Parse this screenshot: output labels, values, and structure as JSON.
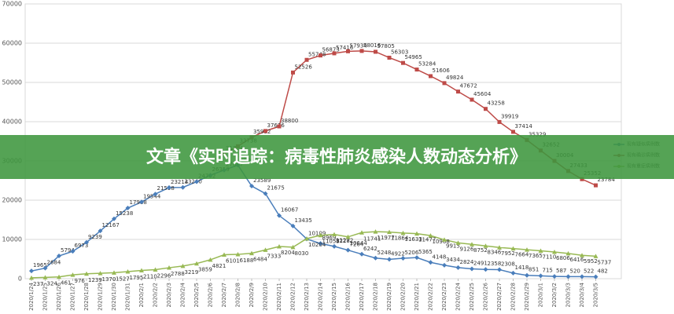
{
  "chart_data": {
    "type": "line",
    "title": "文章《实时追踪：病毒性肺炎感染人数动态分析》",
    "categories": [
      "2020/1/24",
      "2020/1/25",
      "2020/1/26",
      "2020/1/27",
      "2020/1/28",
      "2020/1/29",
      "2020/1/30",
      "2020/1/31",
      "2020/2/1",
      "2020/2/2",
      "2020/2/3",
      "2020/2/4",
      "2020/2/5",
      "2020/2/6",
      "2020/2/7",
      "2020/2/8",
      "2020/2/9",
      "2020/2/10",
      "2020/2/11",
      "2020/2/12",
      "2020/2/13",
      "2020/2/14",
      "2020/2/15",
      "2020/2/16",
      "2020/2/17",
      "2020/2/18",
      "2020/2/19",
      "2020/2/20",
      "2020/2/21",
      "2020/2/22",
      "2020/2/23",
      "2020/2/24",
      "2020/2/25",
      "2020/2/26",
      "2020/2/27",
      "2020/2/28",
      "2020/2/29",
      "2020/3/1",
      "2020/3/2",
      "2020/3/3",
      "2020/3/4",
      "2020/3/5"
    ],
    "series": [
      {
        "name": "现有疑似病例数",
        "color": "#4a7ebb",
        "values": [
          1965,
          2684,
          5794,
          6973,
          9239,
          12167,
          15238,
          17988,
          19544,
          21558,
          23214,
          23260,
          24702,
          26359,
          27657,
          28942,
          23589,
          21675,
          16067,
          13435,
          10109,
          8969,
          8228,
          7264,
          6242,
          5248,
          4922,
          5206,
          5365,
          4148,
          3434,
          2824,
          2491,
          2358,
          2308,
          1418,
          851,
          715,
          587,
          520,
          522,
          482
        ]
      },
      {
        "name": "现有确诊病例数",
        "color": "#be4b48",
        "values": [
          null,
          null,
          null,
          null,
          null,
          null,
          null,
          null,
          null,
          null,
          null,
          null,
          null,
          null,
          31774,
          33738,
          35982,
          37626,
          38800,
          52526,
          55748,
          56873,
          57416,
          57934,
          58016,
          57805,
          56303,
          54965,
          53284,
          51606,
          49824,
          47672,
          45604,
          43258,
          39919,
          37414,
          35329,
          32652,
          30004,
          27433,
          25352,
          23784
        ]
      },
      {
        "name": "现有重症病例数",
        "color": "#98b954",
        "values": [
          237,
          324,
          461,
          976,
          1239,
          1370,
          1527,
          1795,
          2110,
          2296,
          2788,
          3219,
          3859,
          4821,
          6101,
          6188,
          6484,
          7333,
          8204,
          8030,
          10204,
          11053,
          11272,
          10644,
          11741,
          11977,
          11864,
          11633,
          11477,
          10968,
          9915,
          9126,
          8752,
          8346,
          7952,
          7664,
          7365,
          7110,
          6806,
          6416,
          5952,
          5737
        ]
      }
    ],
    "ylim": [
      0,
      70000
    ],
    "yticks": [
      0,
      10000,
      20000,
      30000,
      40000,
      50000,
      60000,
      70000
    ],
    "grid": true,
    "legend": "right"
  }
}
